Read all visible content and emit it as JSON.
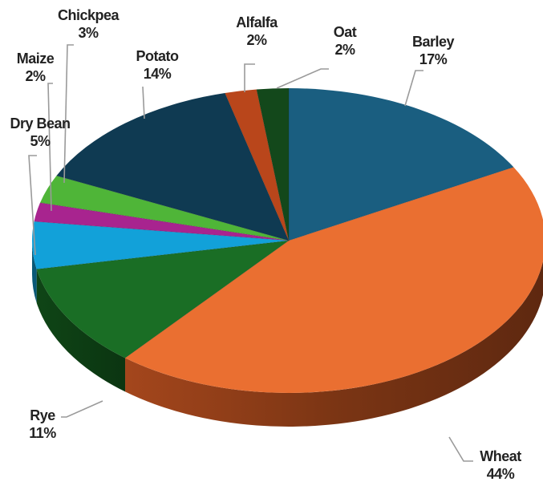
{
  "chart_data": {
    "type": "pie",
    "title": "",
    "start": "top",
    "direction": "clockwise",
    "style": "3d-tilted",
    "slices": [
      {
        "name": "Barley",
        "label": "17%",
        "value": 17,
        "color": "#1a5e80"
      },
      {
        "name": "Wheat",
        "label": "44%",
        "value": 44,
        "color": "#ea6f31"
      },
      {
        "name": "Rye",
        "label": "11%",
        "value": 11,
        "color": "#1a6e25"
      },
      {
        "name": "Dry Bean",
        "label": "5%",
        "value": 5,
        "color": "#12a1d9"
      },
      {
        "name": "Maize",
        "label": "2%",
        "value": 2,
        "color": "#a8248f"
      },
      {
        "name": "Chickpea",
        "label": "3%",
        "value": 3,
        "color": "#4fb538"
      },
      {
        "name": "Potato",
        "label": "14%",
        "value": 14,
        "color": "#0f3a52"
      },
      {
        "name": "Alfalfa",
        "label": "2%",
        "value": 2,
        "color": "#b9461b"
      },
      {
        "name": "Oat",
        "label": "2%",
        "value": 2,
        "color": "#13481b"
      }
    ]
  }
}
